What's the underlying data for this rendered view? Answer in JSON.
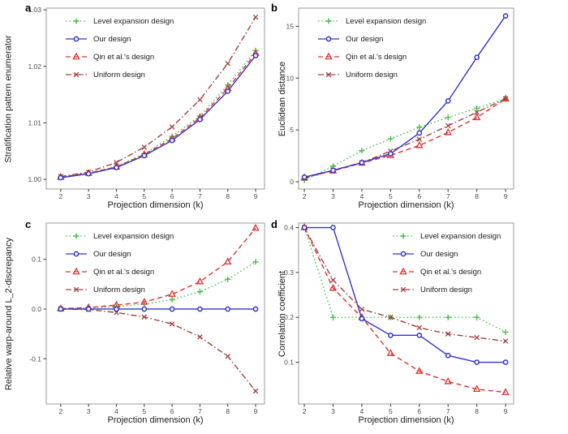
{
  "figure": {
    "background": "#ffffff",
    "panel_border_color": "#999999",
    "tick_color": "#333333",
    "tick_label_color": "#4d4d4d",
    "axis_title_color": "#1a1a1a"
  },
  "series_styles": [
    {
      "name": "Level expansion design",
      "color": "#3fbf3f",
      "dash": "1.5,3",
      "marker": "plus"
    },
    {
      "name": "Our design",
      "color": "#3333cc",
      "dash": "",
      "marker": "circle"
    },
    {
      "name": "Qin et al.'s design",
      "color": "#e03030",
      "dash": "6,4",
      "marker": "triangle"
    },
    {
      "name": "Uniform design",
      "color": "#a04040",
      "dash": "7,3,1.5,3",
      "marker": "x"
    }
  ],
  "chart_data": [
    {
      "panel_letter": "a",
      "type": "line",
      "xlabel": "Projection dimension (k)",
      "ylabel": "Stratification pattern enumerator",
      "x": [
        2,
        3,
        4,
        5,
        6,
        7,
        8,
        9
      ],
      "xtick_labels": [
        "2",
        "3",
        "4",
        "5",
        "6",
        "7",
        "8",
        "9"
      ],
      "xlim": [
        1.48,
        9.32
      ],
      "ylim": [
        0.9983,
        1.0303
      ],
      "ytick_values": [
        1.0,
        1.01,
        1.02,
        1.03
      ],
      "ytick_labels": [
        "1.00",
        "1.01",
        "1.02",
        "1.03"
      ],
      "grid": false,
      "legend_position": "top-left",
      "series": [
        {
          "name": "Level expansion design",
          "values": [
            1.0004,
            1.0011,
            1.0023,
            1.0045,
            1.0076,
            1.0112,
            1.0167,
            1.0228
          ]
        },
        {
          "name": "Our design",
          "values": [
            1.0003,
            1.001,
            1.0021,
            1.0042,
            1.0069,
            1.0106,
            1.0156,
            1.0219
          ]
        },
        {
          "name": "Qin et al.'s design",
          "values": [
            1.0004,
            1.0011,
            1.0022,
            1.0044,
            1.0072,
            1.0109,
            1.0161,
            1.0223
          ]
        },
        {
          "name": "Uniform design",
          "values": [
            1.0005,
            1.0013,
            1.003,
            1.0057,
            1.0093,
            1.0141,
            1.0205,
            1.0287
          ]
        }
      ]
    },
    {
      "panel_letter": "b",
      "type": "line",
      "xlabel": "Projection dimension (k)",
      "ylabel": "Euclidean distance",
      "x": [
        2,
        3,
        4,
        5,
        6,
        7,
        8,
        9
      ],
      "xtick_labels": [
        "2",
        "3",
        "4",
        "5",
        "6",
        "7",
        "8",
        "9"
      ],
      "xlim": [
        1.8,
        9.28
      ],
      "ylim": [
        -0.7,
        16.75
      ],
      "ytick_values": [
        0,
        5,
        10,
        15
      ],
      "ytick_labels": [
        "0",
        "5",
        "10",
        "15"
      ],
      "grid": false,
      "legend_position": "top-left",
      "series": [
        {
          "name": "Level expansion design",
          "values": [
            0.15,
            1.5,
            3.0,
            4.15,
            5.25,
            6.2,
            7.1,
            8.0
          ]
        },
        {
          "name": "Our design",
          "values": [
            0.45,
            1.1,
            1.85,
            2.7,
            4.7,
            7.8,
            12.0,
            16.0
          ]
        },
        {
          "name": "Qin et al.'s design",
          "values": [
            0.4,
            1.05,
            1.8,
            2.55,
            3.5,
            4.75,
            6.2,
            8.0
          ]
        },
        {
          "name": "Uniform design",
          "values": [
            0.35,
            1.1,
            1.85,
            2.95,
            4.1,
            5.4,
            6.7,
            8.0
          ]
        }
      ]
    },
    {
      "panel_letter": "c",
      "type": "line",
      "xlabel": "Projection dimension (k)",
      "ylabel": "Relative warp-around L_2-discrepancy",
      "x": [
        2,
        3,
        4,
        5,
        6,
        7,
        8,
        9
      ],
      "xtick_labels": [
        "2",
        "3",
        "4",
        "5",
        "6",
        "7",
        "8",
        "9"
      ],
      "xlim": [
        1.48,
        9.32
      ],
      "ylim": [
        -0.191,
        0.173
      ],
      "ytick_values": [
        -0.1,
        0.0,
        0.1
      ],
      "ytick_labels": [
        "-0.1",
        "0.0",
        "0.1"
      ],
      "grid": false,
      "legend_position": "top-left",
      "series": [
        {
          "name": "Level expansion design",
          "values": [
            0.001,
            0.002,
            0.005,
            0.01,
            0.019,
            0.035,
            0.06,
            0.095
          ]
        },
        {
          "name": "Our design",
          "values": [
            0,
            0,
            0,
            0,
            0,
            0,
            0,
            0
          ]
        },
        {
          "name": "Qin et al.'s design",
          "values": [
            0.001,
            0.003,
            0.008,
            0.014,
            0.03,
            0.055,
            0.095,
            0.163
          ]
        },
        {
          "name": "Uniform design",
          "values": [
            0.0,
            -0.001,
            -0.007,
            -0.016,
            -0.03,
            -0.056,
            -0.095,
            -0.165
          ]
        }
      ]
    },
    {
      "panel_letter": "d",
      "type": "line",
      "xlabel": "Projection dimension (k)",
      "ylabel": "Correlation coefficient",
      "x": [
        2,
        3,
        4,
        5,
        6,
        7,
        8,
        9
      ],
      "xtick_labels": [
        "2",
        "3",
        "4",
        "5",
        "6",
        "7",
        "8",
        "9"
      ],
      "xlim": [
        1.8,
        9.28
      ],
      "ylim": [
        0.007,
        0.41
      ],
      "ytick_values": [
        0.1,
        0.2,
        0.3,
        0.4
      ],
      "ytick_labels": [
        "0.1",
        "0.2",
        "0.3",
        "0.4"
      ],
      "grid": false,
      "legend_position": "top-right",
      "series": [
        {
          "name": "Level expansion design",
          "values": [
            0.4,
            0.2,
            0.2,
            0.2,
            0.2,
            0.2,
            0.2,
            0.167
          ]
        },
        {
          "name": "Our design",
          "values": [
            0.4,
            0.4,
            0.197,
            0.16,
            0.16,
            0.115,
            0.1,
            0.1
          ]
        },
        {
          "name": "Qin et al.'s design",
          "values": [
            0.4,
            0.265,
            0.2,
            0.12,
            0.08,
            0.057,
            0.04,
            0.033
          ]
        },
        {
          "name": "Uniform design",
          "values": [
            0.4,
            0.283,
            0.218,
            0.2,
            0.177,
            0.163,
            0.155,
            0.147
          ]
        }
      ]
    }
  ]
}
